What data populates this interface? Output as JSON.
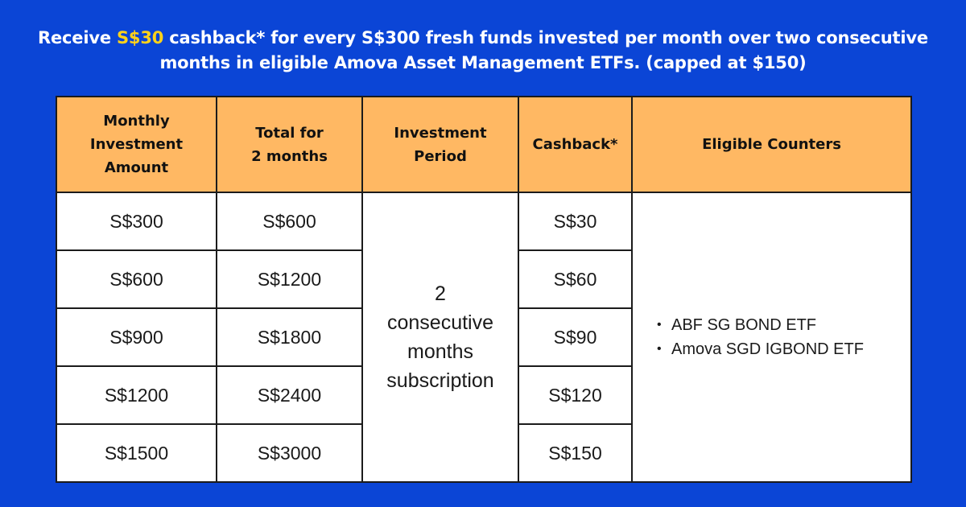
{
  "headline": {
    "prefix": "Receive ",
    "highlight": "S$30",
    "suffix": " cashback* for every S$300 fresh funds invested per month over two consecutive months in eligible Amova Asset Management ETFs. (capped at $150)",
    "highlight_color": "#ffd21a"
  },
  "colors": {
    "background": "#0b45d6",
    "header_fill": "#ffb863",
    "text_on_blue": "#ffffff"
  },
  "table": {
    "headers": {
      "monthly_line1": "Monthly",
      "monthly_line2": "Investment",
      "monthly_line3": "Amount",
      "total_line1": "Total for",
      "total_line2": "2 months",
      "period_line1": "Investment",
      "period_line2": "Period",
      "cashback": "Cashback*",
      "counters": "Eligible Counters"
    },
    "rows": [
      {
        "monthly": "S$300",
        "total": "S$600",
        "cashback": "S$30"
      },
      {
        "monthly": "S$600",
        "total": "S$1200",
        "cashback": "S$60"
      },
      {
        "monthly": "S$900",
        "total": "S$1800",
        "cashback": "S$90"
      },
      {
        "monthly": "S$1200",
        "total": "S$2400",
        "cashback": "S$120"
      },
      {
        "monthly": "S$1500",
        "total": "S$3000",
        "cashback": "S$150"
      }
    ],
    "period_lines": [
      "2",
      "consecutive",
      "months",
      "subscription"
    ],
    "bullet_glyph": "•",
    "counters": [
      "ABF SG BOND ETF",
      "Amova SGD IGBOND ETF"
    ]
  }
}
